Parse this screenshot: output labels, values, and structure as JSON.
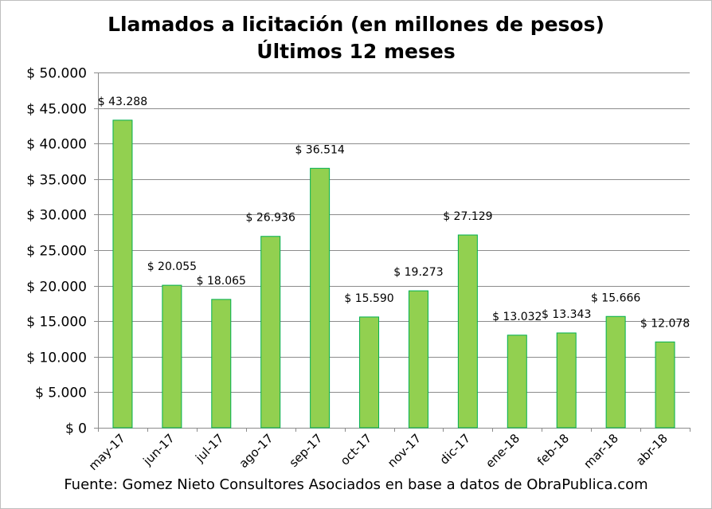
{
  "title_line1": "Llamados a licitación (en millones de pesos)",
  "title_line2": "Últimos 12 meses",
  "source": "Fuente: Gomez Nieto Consultores Asociados en base a datos de ObraPublica.com",
  "chart_data": {
    "type": "bar",
    "title": "Llamados a licitación (en millones de pesos) Últimos 12 meses",
    "categories": [
      "may-17",
      "jun-17",
      "jul-17",
      "ago-17",
      "sep-17",
      "oct-17",
      "nov-17",
      "dic-17",
      "ene-18",
      "feb-18",
      "mar-18",
      "abr-18"
    ],
    "values": [
      43288,
      20055,
      18065,
      26936,
      36514,
      15590,
      19273,
      27129,
      13032,
      13343,
      15666,
      12078
    ],
    "data_labels": [
      "$ 43.288",
      "$ 20.055",
      "$ 18.065",
      "$ 26.936",
      "$ 36.514",
      "$ 15.590",
      "$ 19.273",
      "$ 27.129",
      "$ 13.032",
      "$ 13.343",
      "$ 15.666",
      "$ 12.078"
    ],
    "ylim": [
      0,
      50000
    ],
    "yticks": [
      0,
      5000,
      10000,
      15000,
      20000,
      25000,
      30000,
      35000,
      40000,
      45000,
      50000
    ],
    "ytick_labels": [
      "$ 0",
      "$ 5.000",
      "$ 10.000",
      "$ 15.000",
      "$ 20.000",
      "$ 25.000",
      "$ 30.000",
      "$ 35.000",
      "$ 40.000",
      "$ 45.000",
      "$ 50.000"
    ],
    "grid": true,
    "legend": "none",
    "colors": {
      "bar_fill": "#92d050",
      "bar_stroke": "#00b050",
      "grid": "#8c8c8c",
      "axis": "#8c8c8c",
      "text": "#000000"
    }
  }
}
